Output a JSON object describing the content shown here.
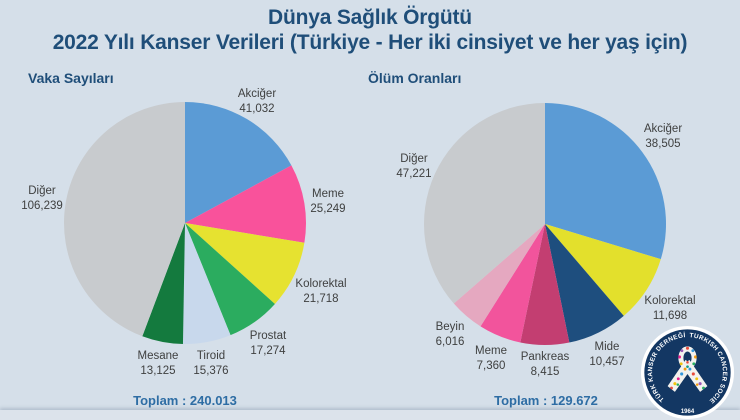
{
  "title": {
    "line1": "Dünya Sağlık Örgütü",
    "line2": "2022 Yılı Kanser Verileri (Türkiye - Her iki cinsiyet ve her yaş için)"
  },
  "chart_data": [
    {
      "type": "pie",
      "title": "Vaka Sayıları",
      "start_angle_deg": 0,
      "direction": "clockwise",
      "total_label": "Toplam : 240.013",
      "total_value": 240013,
      "slices": [
        {
          "label": "Akciğer",
          "value": 41032,
          "value_display": "41,032",
          "color": "#5B9BD5"
        },
        {
          "label": "Meme",
          "value": 25249,
          "value_display": "25,249",
          "color": "#F9529B"
        },
        {
          "label": "Kolorektal",
          "value": 21718,
          "value_display": "21,718",
          "color": "#E6E230"
        },
        {
          "label": "Prostat",
          "value": 17274,
          "value_display": "17,274",
          "color": "#2BAC5F"
        },
        {
          "label": "Tiroid",
          "value": 15376,
          "value_display": "15,376",
          "color": "#C8D8EC"
        },
        {
          "label": "Mesane",
          "value": 13125,
          "value_display": "13,125",
          "color": "#147A3E"
        },
        {
          "label": "Diğer",
          "value": 106239,
          "value_display": "106,239",
          "color": "#C8CBCE"
        }
      ]
    },
    {
      "type": "pie",
      "title": "Ölüm Oranları",
      "start_angle_deg": 0,
      "direction": "clockwise",
      "total_label": "Toplam : 129.672",
      "total_value": 129672,
      "slices": [
        {
          "label": "Akciğer",
          "value": 38505,
          "value_display": "38,505",
          "color": "#5B9BD5"
        },
        {
          "label": "Kolorektal",
          "value": 11698,
          "value_display": "11,698",
          "color": "#E3E02C"
        },
        {
          "label": "Mide",
          "value": 10457,
          "value_display": "10,457",
          "color": "#1E4E7E"
        },
        {
          "label": "Pankreas",
          "value": 8415,
          "value_display": "8,415",
          "color": "#C33E71"
        },
        {
          "label": "Meme",
          "value": 7360,
          "value_display": "7,360",
          "color": "#F2549C"
        },
        {
          "label": "Beyin",
          "value": 6016,
          "value_display": "6,016",
          "color": "#E5A8C0"
        },
        {
          "label": "Diğer",
          "value": 47221,
          "value_display": "47,221",
          "color": "#C8CBCE"
        }
      ]
    }
  ],
  "logo": {
    "text_left": "TÜRK KANSER DERNEĞİ",
    "text_right": "TURKISH CANCER SOCIETY",
    "year": "1964",
    "circle_color": "#133763"
  },
  "palette": {
    "background": "#D5DFE9",
    "title_navy": "#1F4E79",
    "total_blue": "#2E6DA4",
    "label_gray": "#3F4040"
  }
}
